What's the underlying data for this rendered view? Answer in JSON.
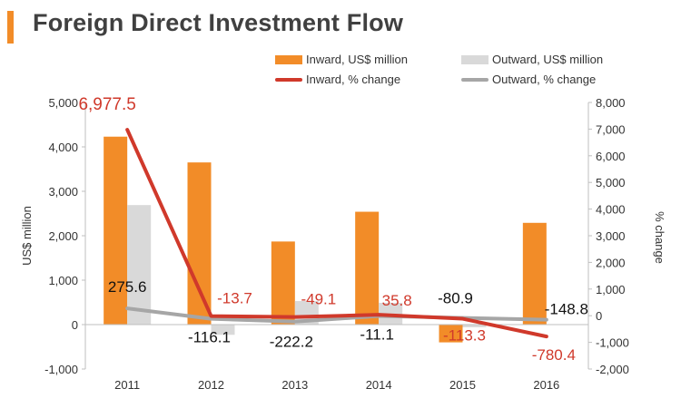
{
  "header": {
    "title": "Foreign Direct Investment Flow"
  },
  "colors": {
    "inward": "#f28c28",
    "outward": "#d9d9d9",
    "inward_line": "#d0392b",
    "outward_line": "#a6a6a6",
    "accent": "#f28c28"
  },
  "chart_data": {
    "type": "bar",
    "title": "Foreign Direct Investment Flow",
    "categories": [
      "2011",
      "2012",
      "2013",
      "2014",
      "2015",
      "2016"
    ],
    "ylabel": "US$ million",
    "y2label": "% change",
    "ylim": [
      -1000,
      5000
    ],
    "y2lim": [
      -2000,
      8000
    ],
    "yticks": [
      "-1,000",
      "0",
      "1,000",
      "2,000",
      "3,000",
      "4,000",
      "5,000"
    ],
    "y2ticks": [
      "-2,000",
      "-1,000",
      "0",
      "1,000",
      "2,000",
      "3,000",
      "4,000",
      "5,000",
      "6,000",
      "7,000",
      "8,000"
    ],
    "series": [
      {
        "name": "Inward, US$ million",
        "type": "bar",
        "axis": "left",
        "values": [
          4230,
          3650,
          1870,
          2540,
          -400,
          2290
        ]
      },
      {
        "name": "Outward, US$ million",
        "type": "bar",
        "axis": "left",
        "values": [
          2690,
          -230,
          530,
          490,
          -60,
          -10
        ]
      },
      {
        "name": "Inward, % change",
        "type": "line",
        "axis": "right",
        "values": [
          6977.5,
          -13.7,
          -49.1,
          35.8,
          -113.3,
          -780.4
        ],
        "labels": [
          "6,977.5",
          "-13.7",
          "-49.1",
          "35.8",
          "-113.3",
          "-780.4"
        ]
      },
      {
        "name": "Outward, % change",
        "type": "line",
        "axis": "right",
        "values": [
          275.6,
          -116.1,
          -222.2,
          -11.1,
          -80.9,
          -148.8
        ],
        "labels": [
          "275.6",
          "-116.1",
          "-222.2",
          "-11.1",
          "-80.9",
          "-148.8"
        ]
      }
    ]
  }
}
